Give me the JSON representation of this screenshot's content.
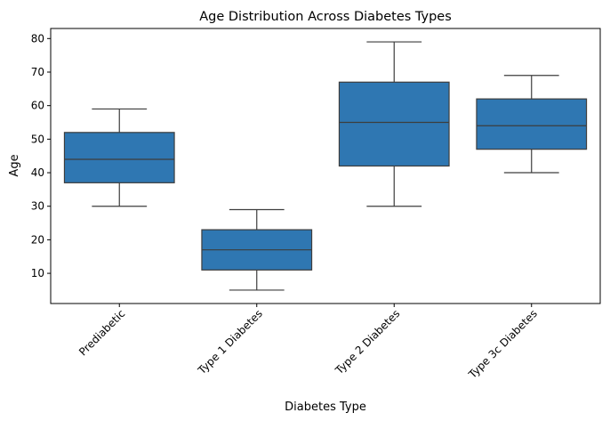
{
  "chart_data": {
    "type": "box",
    "title": "Age Distribution Across Diabetes Types",
    "xlabel": "Diabetes Type",
    "ylabel": "Age",
    "ylim": [
      1,
      83
    ],
    "yticks": [
      10,
      20,
      30,
      40,
      50,
      60,
      70,
      80
    ],
    "grid": false,
    "box_color": "#2f77b2",
    "line_color": "#3d3d3d",
    "categories": [
      "Prediabetic",
      "Type 1 Diabetes",
      "Type 2 Diabetes",
      "Type 3c Diabetes"
    ],
    "boxes": [
      {
        "category": "Prediabetic",
        "whisker_low": 30,
        "q1": 37,
        "median": 44,
        "q3": 52,
        "whisker_high": 59
      },
      {
        "category": "Type 1 Diabetes",
        "whisker_low": 5,
        "q1": 11,
        "median": 17,
        "q3": 23,
        "whisker_high": 29
      },
      {
        "category": "Type 2 Diabetes",
        "whisker_low": 30,
        "q1": 42,
        "median": 55,
        "q3": 67,
        "whisker_high": 79
      },
      {
        "category": "Type 3c Diabetes",
        "whisker_low": 40,
        "q1": 47,
        "median": 54,
        "q3": 62,
        "whisker_high": 69
      }
    ]
  }
}
